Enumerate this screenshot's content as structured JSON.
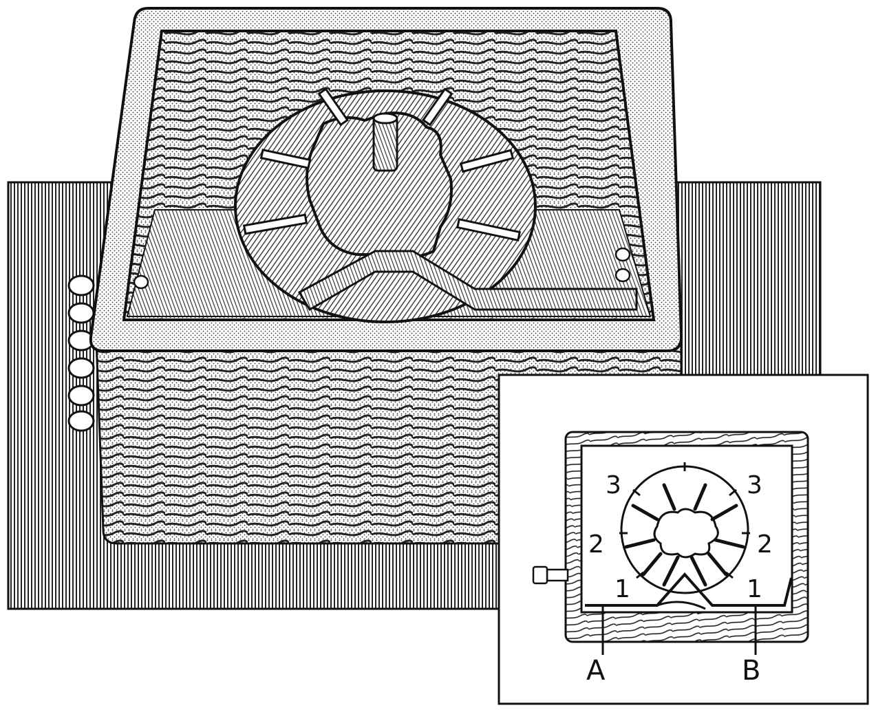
{
  "inset": {
    "labels": {
      "left_3": "3",
      "right_3": "3",
      "left_2": "2",
      "right_2": "2",
      "left_1": "1",
      "right_1": "1",
      "a": "A",
      "b": "B"
    }
  },
  "colors": {
    "ink": "#111111",
    "paper": "#ffffff"
  }
}
